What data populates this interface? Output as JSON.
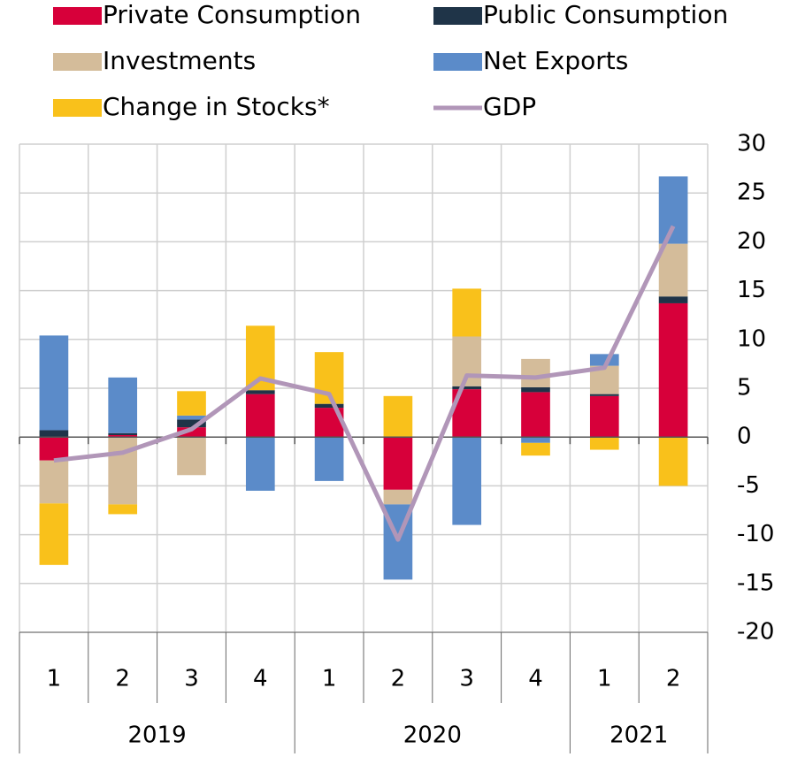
{
  "chart_data": {
    "type": "stacked_bar_line",
    "categories": [
      "1",
      "2",
      "3",
      "4",
      "1",
      "2",
      "3",
      "4",
      "1",
      "2"
    ],
    "category_groups": [
      {
        "label": "2019",
        "size": 4
      },
      {
        "label": "2020",
        "size": 4
      },
      {
        "label": "2021",
        "size": 2
      }
    ],
    "series": [
      {
        "name": "Private Consumption",
        "color": "#d7003a",
        "kind": "bar",
        "values": [
          -2.4,
          0.2,
          1.0,
          4.4,
          3.0,
          -5.4,
          4.9,
          4.6,
          4.2,
          13.7
        ]
      },
      {
        "name": "Public Consumption",
        "color": "#1f3448",
        "kind": "bar",
        "values": [
          0.7,
          0.2,
          0.8,
          0.4,
          0.4,
          0,
          0.3,
          0.5,
          0.2,
          0.7
        ]
      },
      {
        "name": "Investments",
        "color": "#d4bc9a",
        "kind": "bar",
        "values": [
          -4.4,
          -6.9,
          -3.9,
          0,
          0,
          -1.5,
          5.1,
          2.9,
          2.9,
          5.4
        ]
      },
      {
        "name": "Net Exports",
        "color": "#5b8bc9",
        "kind": "bar",
        "values": [
          9.7,
          5.7,
          0.4,
          -5.5,
          -4.5,
          -7.7,
          -9.0,
          -0.6,
          1.2,
          6.9
        ]
      },
      {
        "name": "Change in Stocks*",
        "color": "#f9c11b",
        "kind": "bar",
        "values": [
          -6.3,
          -1.0,
          2.5,
          6.6,
          5.3,
          4.2,
          4.9,
          -1.3,
          -1.3,
          -5.0
        ]
      },
      {
        "name": "GDP",
        "color": "#b196b8",
        "kind": "line",
        "values": [
          -2.4,
          -1.6,
          0.8,
          6.0,
          4.4,
          -10.5,
          6.3,
          6.1,
          7.1,
          21.6
        ]
      }
    ],
    "ylim": [
      -20,
      30
    ],
    "yticks": [
      -20,
      -15,
      -10,
      -5,
      0,
      5,
      10,
      15,
      20,
      25,
      30
    ],
    "grid": true
  }
}
